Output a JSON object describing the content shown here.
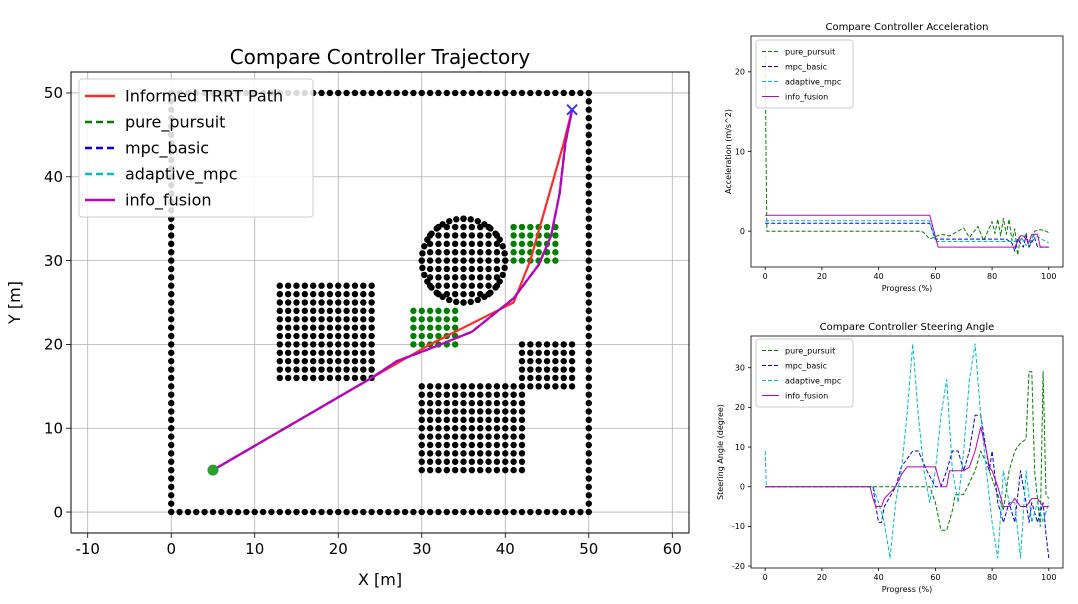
{
  "chart_data": [
    {
      "type": "line",
      "title": "Compare Controller Trajectory",
      "xlabel": "X [m]",
      "ylabel": "Y [m]",
      "xlim": [
        -12,
        62
      ],
      "ylim": [
        -2.5,
        52.5
      ],
      "xticks": [
        -10,
        0,
        10,
        20,
        30,
        40,
        50,
        60
      ],
      "yticks": [
        0,
        10,
        20,
        30,
        40,
        50
      ],
      "grid": true,
      "legend_position": "top-left",
      "start": [
        5,
        5
      ],
      "goal": [
        48,
        48
      ],
      "obstacles": {
        "boundary": {
          "x0": 0,
          "x1": 50,
          "y0": 0,
          "y1": 50,
          "spacing": 1
        },
        "rectangles": [
          {
            "x0": 13,
            "x1": 24,
            "y0": 16,
            "y1": 27
          },
          {
            "x0": 30,
            "x1": 42,
            "y0": 5,
            "y1": 15
          },
          {
            "x0": 42,
            "x1": 48,
            "y0": 15,
            "y1": 20
          }
        ],
        "circle": {
          "cx": 35,
          "cy": 30,
          "r": 5
        },
        "sampled_regions": [
          {
            "x0": 29,
            "x1": 34,
            "y0": 20,
            "y1": 24
          },
          {
            "x0": 41,
            "x1": 46,
            "y0": 30,
            "y1": 34
          }
        ]
      },
      "series": [
        {
          "name": "Informed TRRT Path",
          "color": "#ff2a2a",
          "dash": "solid",
          "x": [
            5,
            24,
            31,
            41,
            43,
            47,
            48
          ],
          "y": [
            5,
            16,
            20,
            25,
            30,
            44,
            48
          ]
        },
        {
          "name": "pure_pursuit",
          "color": "#008000",
          "dash": "dashed",
          "x": [
            5,
            24,
            27,
            31,
            36,
            41,
            44,
            45.5,
            46.5,
            47.2,
            48
          ],
          "y": [
            5,
            16,
            18,
            19.5,
            21.5,
            25.5,
            29.5,
            33,
            38,
            44,
            48
          ]
        },
        {
          "name": "mpc_basic",
          "color": "#0000ff",
          "dash": "dashed",
          "x": [
            5,
            24,
            27,
            31,
            36,
            41,
            44,
            45.5,
            46.5,
            47.2,
            48
          ],
          "y": [
            5,
            16,
            18,
            19.5,
            21.5,
            25.5,
            29.5,
            33,
            38,
            44,
            48
          ]
        },
        {
          "name": "adaptive_mpc",
          "color": "#00bfbf",
          "dash": "dashed",
          "x": [
            5,
            24,
            27,
            31,
            36,
            41,
            44,
            45.5,
            46.5,
            47.2,
            48
          ],
          "y": [
            5,
            16,
            18,
            19.5,
            21.5,
            25.5,
            29.5,
            33,
            38,
            44,
            48
          ]
        },
        {
          "name": "info_fusion",
          "color": "#bf00bf",
          "dash": "solid",
          "x": [
            5,
            24,
            27,
            31,
            36,
            41,
            44,
            45.5,
            46.5,
            47.2,
            48
          ],
          "y": [
            5,
            16,
            18,
            19.5,
            21.5,
            25.5,
            29.5,
            33,
            38,
            44,
            48
          ]
        }
      ]
    },
    {
      "type": "line",
      "title": "Compare Controller Acceleration",
      "xlabel": "Progress (%)",
      "ylabel": "Acceleration (m/s^2)",
      "xlim": [
        -5,
        105
      ],
      "ylim": [
        -4.5,
        24.5
      ],
      "xticks": [
        0,
        20,
        40,
        60,
        80,
        100
      ],
      "yticks": [
        0,
        10,
        20
      ],
      "legend_position": "top-left",
      "series": [
        {
          "name": "pure_pursuit",
          "color": "#008000",
          "dash": "dashed",
          "x": [
            0,
            0.3,
            0.6,
            55,
            56,
            58,
            62,
            65,
            70,
            72,
            75,
            77,
            80,
            81,
            82,
            83,
            84,
            85,
            86,
            87,
            88,
            89,
            90,
            91,
            92,
            93,
            95,
            97,
            99,
            100
          ],
          "y": [
            22,
            10,
            0,
            0,
            -0.2,
            -1,
            -0.4,
            -0.6,
            0.4,
            -0.8,
            0.6,
            -1.2,
            1.2,
            -0.3,
            1.5,
            -0.6,
            1.6,
            -0.4,
            1.5,
            -1.2,
            0.3,
            -3,
            -0.8,
            -1.2,
            -0.2,
            -2,
            0,
            0.2,
            0,
            -0.2
          ]
        },
        {
          "name": "mpc_basic",
          "color": "#0000ff",
          "dash": "dashed",
          "x": [
            0,
            55,
            58,
            60,
            85,
            87,
            88,
            89,
            91,
            92,
            93,
            95,
            96,
            100
          ],
          "y": [
            1,
            1,
            1,
            -1,
            -1,
            -1.5,
            -2.5,
            -1,
            -2,
            -0.6,
            -2,
            -0.8,
            -2,
            -2
          ]
        },
        {
          "name": "adaptive_mpc",
          "color": "#00bfbf",
          "dash": "dashed",
          "x": [
            0,
            58,
            60,
            88,
            90,
            92,
            95,
            100
          ],
          "y": [
            1.3,
            1.3,
            -1.3,
            -1.3,
            -0.6,
            -1.8,
            -0.5,
            -1.5
          ]
        },
        {
          "name": "info_fusion",
          "color": "#bf00bf",
          "dash": "solid",
          "x": [
            0,
            58,
            61,
            88,
            90,
            91,
            93,
            94,
            96,
            97,
            98,
            100
          ],
          "y": [
            2,
            2,
            -2,
            -2,
            -0.6,
            -0.6,
            -1.4,
            -0.4,
            -0.4,
            -2,
            -2,
            -2
          ]
        }
      ]
    },
    {
      "type": "line",
      "title": "Compare Controller Steering Angle",
      "xlabel": "Progress (%)",
      "ylabel": "Steering Angle (degree)",
      "xlim": [
        -5,
        105
      ],
      "ylim": [
        -20.5,
        38
      ],
      "xticks": [
        0,
        20,
        40,
        60,
        80,
        100
      ],
      "yticks": [
        -20,
        -10,
        0,
        10,
        20,
        30
      ],
      "legend_position": "top-left",
      "series": [
        {
          "name": "pure_pursuit",
          "color": "#008000",
          "dash": "dashed",
          "x": [
            0,
            58,
            60,
            62,
            64,
            66,
            67,
            70,
            74,
            76,
            78,
            80,
            82,
            84,
            86,
            88,
            90,
            92,
            93,
            94,
            95,
            96,
            97,
            98,
            99,
            100
          ],
          "y": [
            0,
            0,
            -4,
            -11,
            -11,
            -6,
            -2,
            -2,
            4,
            9,
            6,
            2,
            -2,
            -6,
            4,
            9,
            11,
            12,
            29,
            29,
            4,
            -3,
            -10,
            29,
            -2,
            -3
          ]
        },
        {
          "name": "mpc_basic",
          "color": "#0000ff",
          "dash": "dashed",
          "x": [
            0,
            38,
            39,
            40,
            41,
            42,
            46,
            48,
            52,
            54,
            57,
            60,
            62,
            64,
            66,
            68,
            70,
            72,
            74,
            76,
            78,
            79,
            80,
            82,
            84,
            86,
            88,
            90,
            92,
            93,
            94,
            96,
            98,
            99,
            100
          ],
          "y": [
            0,
            0,
            -5,
            -9,
            -9,
            -5,
            0,
            5,
            9,
            9,
            4,
            0,
            0,
            4,
            9,
            9,
            4,
            9,
            18,
            18,
            9,
            4,
            9,
            -4,
            -9,
            -4,
            -9,
            4,
            -4,
            -9,
            -4,
            -9,
            -4,
            -12,
            -18
          ]
        },
        {
          "name": "adaptive_mpc",
          "color": "#00bfbf",
          "dash": "dashed",
          "x": [
            0,
            0.2,
            0.4,
            38,
            40,
            42,
            44,
            46,
            48,
            50,
            52,
            54,
            56,
            58,
            60,
            62,
            64,
            66,
            68,
            70,
            72,
            74,
            76,
            78,
            80,
            82,
            84,
            86,
            88,
            90,
            92,
            94,
            96,
            98,
            100
          ],
          "y": [
            9,
            5,
            0,
            0,
            -4,
            -9,
            -18,
            -4,
            4,
            18,
            36,
            18,
            4,
            -4,
            4,
            18,
            27,
            4,
            -4,
            9,
            27,
            36,
            18,
            4,
            -9,
            -18,
            4,
            -4,
            -4,
            -18,
            4,
            -9,
            -4,
            -9,
            -4
          ]
        },
        {
          "name": "info_fusion",
          "color": "#bf00bf",
          "dash": "solid",
          "x": [
            0,
            37,
            38,
            39,
            41,
            42,
            46,
            48,
            50,
            60,
            62,
            64,
            65,
            66,
            68,
            70,
            72,
            74,
            75,
            76,
            77,
            78,
            79,
            80,
            82,
            84,
            86,
            88,
            90,
            92,
            94,
            96,
            98,
            99,
            100
          ],
          "y": [
            0,
            0,
            -3,
            -5,
            -5,
            -3,
            0,
            3,
            5,
            5,
            0,
            0,
            4,
            4,
            4,
            4,
            5,
            9,
            12,
            15,
            12,
            9,
            5,
            4,
            0,
            -5,
            -5,
            -3,
            -5,
            -5,
            -3,
            -3,
            -5,
            -5,
            -5
          ]
        }
      ]
    }
  ]
}
